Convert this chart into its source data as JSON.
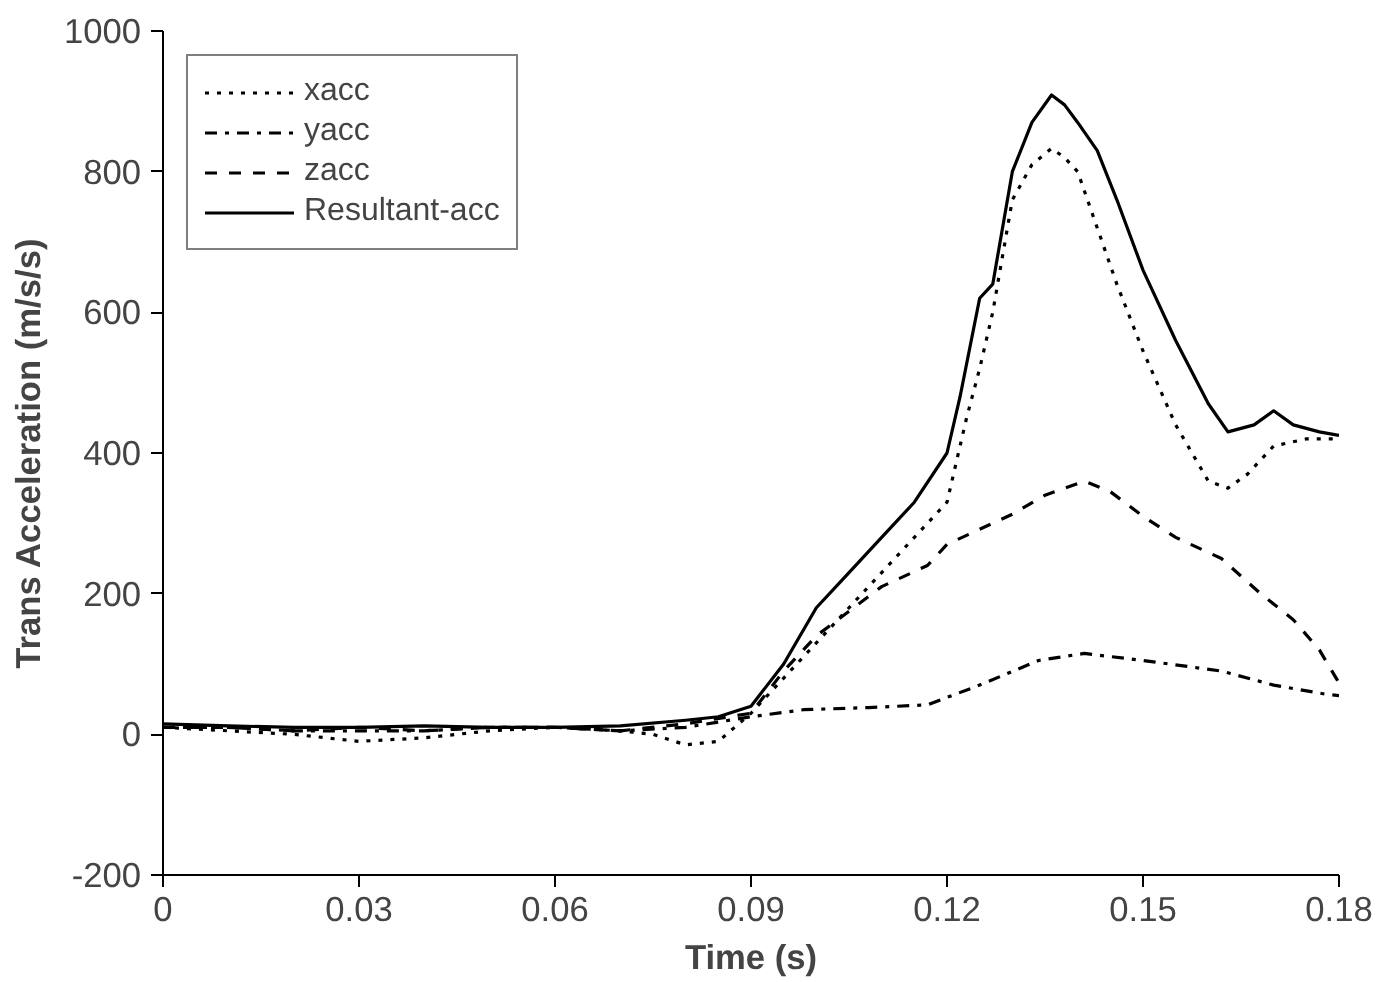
{
  "chart_data": {
    "type": "line",
    "xlabel": "Time (s)",
    "ylabel": "Trans Acceleration (m/s/s)",
    "xlim": [
      0,
      0.18
    ],
    "xticks": [
      0,
      0.03,
      0.06,
      0.09,
      0.12,
      0.15,
      0.18
    ],
    "ylim": [
      -200,
      1000
    ],
    "yticks": [
      -200,
      0,
      200,
      400,
      600,
      800,
      1000
    ],
    "grid": false,
    "legend": "top left",
    "marker": "none",
    "series": [
      {
        "name": "xacc",
        "color": "#000000",
        "line_style": "dotted",
        "x": [
          0,
          0.01,
          0.02,
          0.03,
          0.04,
          0.05,
          0.06,
          0.07,
          0.075,
          0.08,
          0.085,
          0.09,
          0.095,
          0.1,
          0.105,
          0.11,
          0.115,
          0.12,
          0.123,
          0.125,
          0.127,
          0.13,
          0.133,
          0.136,
          0.138,
          0.14,
          0.143,
          0.146,
          0.15,
          0.155,
          0.16,
          0.163,
          0.166,
          0.17,
          0.175,
          0.18
        ],
        "values": [
          10,
          5,
          0,
          -10,
          -5,
          5,
          10,
          5,
          0,
          -15,
          -10,
          30,
          80,
          130,
          180,
          230,
          280,
          330,
          450,
          520,
          600,
          760,
          810,
          833,
          820,
          800,
          720,
          640,
          545,
          440,
          360,
          350,
          370,
          410,
          420,
          420
        ]
      },
      {
        "name": "yacc",
        "color": "#000000",
        "line_style": "dashdot",
        "x": [
          0,
          0.01,
          0.02,
          0.03,
          0.04,
          0.05,
          0.06,
          0.07,
          0.08,
          0.09,
          0.098,
          0.108,
          0.117,
          0.125,
          0.134,
          0.141,
          0.15,
          0.162,
          0.17,
          0.178,
          0.18
        ],
        "values": [
          10,
          10,
          5,
          5,
          5,
          10,
          10,
          5,
          10,
          25,
          35,
          38,
          42,
          70,
          105,
          115,
          105,
          90,
          70,
          57,
          55
        ]
      },
      {
        "name": "zacc",
        "color": "#000000",
        "line_style": "dashed",
        "x": [
          0,
          0.01,
          0.02,
          0.03,
          0.04,
          0.05,
          0.06,
          0.07,
          0.08,
          0.09,
          0.095,
          0.1,
          0.11,
          0.117,
          0.12,
          0.13,
          0.135,
          0.141,
          0.145,
          0.15,
          0.155,
          0.162,
          0.168,
          0.173,
          0.177,
          0.18
        ],
        "values": [
          10,
          10,
          5,
          10,
          5,
          10,
          10,
          5,
          15,
          30,
          90,
          140,
          210,
          240,
          270,
          313,
          340,
          360,
          345,
          310,
          280,
          250,
          200,
          163,
          120,
          73
        ]
      },
      {
        "name": "Resultant-acc",
        "color": "#000000",
        "line_style": "solid",
        "x": [
          0,
          0.01,
          0.02,
          0.03,
          0.04,
          0.05,
          0.06,
          0.07,
          0.08,
          0.085,
          0.09,
          0.095,
          0.1,
          0.105,
          0.11,
          0.115,
          0.12,
          0.122,
          0.125,
          0.127,
          0.13,
          0.133,
          0.136,
          0.138,
          0.14,
          0.143,
          0.146,
          0.15,
          0.155,
          0.16,
          0.163,
          0.167,
          0.17,
          0.173,
          0.177,
          0.18
        ],
        "values": [
          15,
          12,
          10,
          10,
          12,
          10,
          10,
          12,
          20,
          25,
          40,
          100,
          180,
          230,
          280,
          330,
          400,
          480,
          620,
          640,
          800,
          870,
          909,
          895,
          870,
          830,
          760,
          660,
          560,
          470,
          430,
          440,
          460,
          440,
          430,
          425
        ]
      }
    ]
  }
}
